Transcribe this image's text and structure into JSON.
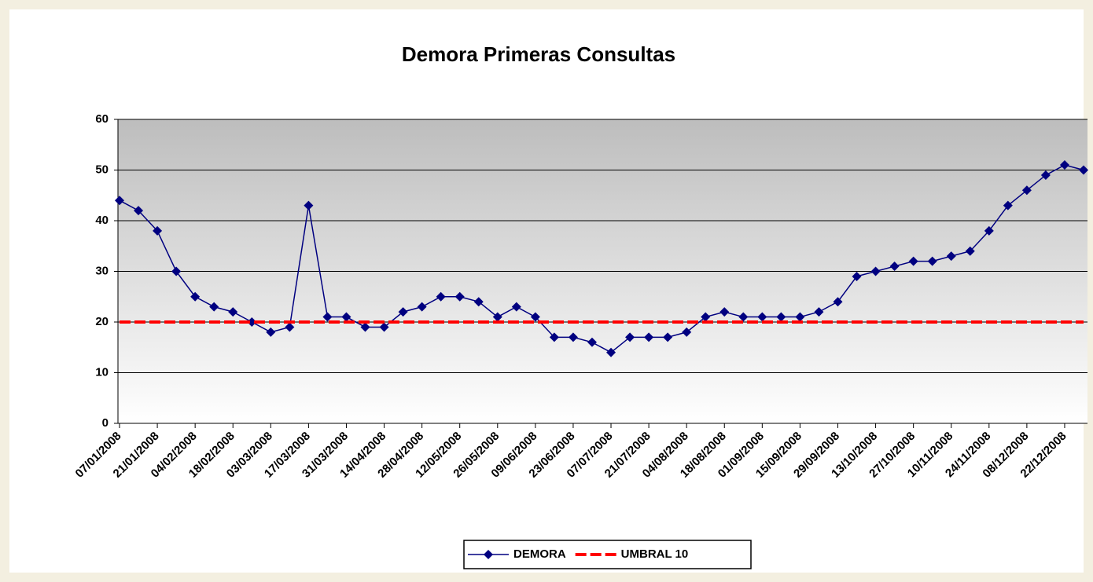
{
  "chart_data": {
    "type": "line",
    "title": "Demora Primeras Consultas",
    "categories": [
      "07/01/2008",
      null,
      "21/01/2008",
      null,
      "04/02/2008",
      null,
      "18/02/2008",
      null,
      "03/03/2008",
      null,
      "17/03/2008",
      null,
      "31/03/2008",
      null,
      "14/04/2008",
      null,
      "28/04/2008",
      null,
      "12/05/2008",
      null,
      "26/05/2008",
      null,
      "09/06/2008",
      null,
      "23/06/2008",
      null,
      "07/07/2008",
      null,
      "21/07/2008",
      null,
      "04/08/2008",
      null,
      "18/08/2008",
      null,
      "01/09/2008",
      null,
      "15/09/2008",
      null,
      "29/09/2008",
      null,
      "13/10/2008",
      null,
      "27/10/2008",
      null,
      "10/11/2008",
      null,
      "24/11/2008",
      null,
      "08/12/2008",
      null,
      "22/12/2008",
      null
    ],
    "series": [
      {
        "name": "DEMORA",
        "color": "#000080",
        "marker": "diamond",
        "style": "solid",
        "values": [
          44,
          42,
          38,
          30,
          25,
          23,
          22,
          20,
          18,
          19,
          43,
          21,
          21,
          19,
          19,
          22,
          23,
          25,
          25,
          24,
          21,
          23,
          21,
          17,
          17,
          16,
          14,
          17,
          17,
          17,
          18,
          21,
          22,
          21,
          21,
          21,
          21,
          22,
          24,
          29,
          30,
          31,
          32,
          32,
          33,
          34,
          38,
          43,
          46,
          49,
          51,
          50
        ]
      },
      {
        "name": "UMBRAL 10",
        "color": "#ff0000",
        "marker": "none",
        "style": "dashed",
        "values": [
          20,
          20,
          20,
          20,
          20,
          20,
          20,
          20,
          20,
          20,
          20,
          20,
          20,
          20,
          20,
          20,
          20,
          20,
          20,
          20,
          20,
          20,
          20,
          20,
          20,
          20,
          20,
          20,
          20,
          20,
          20,
          20,
          20,
          20,
          20,
          20,
          20,
          20,
          20,
          20,
          20,
          20,
          20,
          20,
          20,
          20,
          20,
          20,
          20,
          20,
          20,
          20
        ]
      }
    ],
    "ylim": [
      0,
      60
    ],
    "yticks": [
      0,
      10,
      20,
      30,
      40,
      50,
      60
    ],
    "grid": true,
    "legend": "bottom"
  }
}
